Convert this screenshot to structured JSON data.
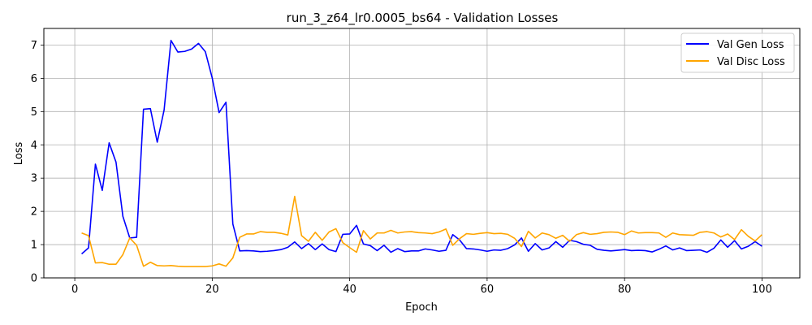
{
  "chart_data": {
    "type": "line",
    "title": "run_3_z64_lr0.0005_bs64 - Validation Losses",
    "xlabel": "Epoch",
    "ylabel": "Loss",
    "xlim": [
      -4.5,
      105.5
    ],
    "ylim": [
      0,
      7.5
    ],
    "xticks": [
      0,
      20,
      40,
      60,
      80,
      100
    ],
    "yticks": [
      0,
      1,
      2,
      3,
      4,
      5,
      6,
      7
    ],
    "grid": true,
    "legend": "upper-right",
    "x": [
      1,
      2,
      3,
      4,
      5,
      6,
      7,
      8,
      9,
      10,
      11,
      12,
      13,
      14,
      15,
      16,
      17,
      18,
      19,
      20,
      21,
      22,
      23,
      24,
      25,
      26,
      27,
      28,
      29,
      30,
      31,
      32,
      33,
      34,
      35,
      36,
      37,
      38,
      39,
      40,
      41,
      42,
      43,
      44,
      45,
      46,
      47,
      48,
      49,
      50,
      51,
      52,
      53,
      54,
      55,
      56,
      57,
      58,
      59,
      60,
      61,
      62,
      63,
      64,
      65,
      66,
      67,
      68,
      69,
      70,
      71,
      72,
      73,
      74,
      75,
      76,
      77,
      78,
      79,
      80,
      81,
      82,
      83,
      84,
      85,
      86,
      87,
      88,
      89,
      90,
      91,
      92,
      93,
      94,
      95,
      96,
      97,
      98,
      99,
      100
    ],
    "series": [
      {
        "name": "Val Gen Loss",
        "color": "#0000ff",
        "values": [
          0.72,
          0.9,
          3.42,
          2.63,
          4.06,
          3.48,
          1.85,
          1.2,
          1.22,
          5.07,
          5.09,
          4.08,
          5.05,
          7.14,
          6.79,
          6.81,
          6.88,
          7.05,
          6.8,
          6.01,
          4.97,
          5.28,
          1.62,
          0.81,
          0.82,
          0.81,
          0.79,
          0.8,
          0.82,
          0.85,
          0.92,
          1.08,
          0.88,
          1.03,
          0.85,
          1.02,
          0.85,
          0.79,
          1.31,
          1.32,
          1.58,
          1.02,
          0.97,
          0.82,
          0.98,
          0.77,
          0.88,
          0.79,
          0.81,
          0.81,
          0.87,
          0.84,
          0.8,
          0.83,
          1.3,
          1.14,
          0.88,
          0.87,
          0.84,
          0.8,
          0.84,
          0.83,
          0.88,
          0.99,
          1.2,
          0.8,
          1.03,
          0.84,
          0.9,
          1.09,
          0.92,
          1.13,
          1.09,
          1.01,
          0.98,
          0.86,
          0.83,
          0.81,
          0.83,
          0.85,
          0.82,
          0.83,
          0.82,
          0.78,
          0.86,
          0.96,
          0.84,
          0.9,
          0.82,
          0.83,
          0.84,
          0.77,
          0.89,
          1.14,
          0.92,
          1.12,
          0.87,
          0.95,
          1.09,
          0.95
        ]
      },
      {
        "name": "Val Disc Loss",
        "color": "#ffa500",
        "values": [
          1.35,
          1.27,
          0.45,
          0.46,
          0.41,
          0.41,
          0.7,
          1.2,
          0.98,
          0.35,
          0.47,
          0.37,
          0.36,
          0.37,
          0.35,
          0.34,
          0.34,
          0.34,
          0.34,
          0.36,
          0.42,
          0.35,
          0.6,
          1.22,
          1.32,
          1.32,
          1.39,
          1.37,
          1.37,
          1.34,
          1.29,
          2.45,
          1.27,
          1.1,
          1.37,
          1.13,
          1.38,
          1.48,
          1.06,
          0.91,
          0.77,
          1.42,
          1.17,
          1.35,
          1.35,
          1.43,
          1.35,
          1.38,
          1.39,
          1.36,
          1.35,
          1.33,
          1.38,
          1.47,
          0.98,
          1.18,
          1.33,
          1.31,
          1.34,
          1.36,
          1.33,
          1.34,
          1.31,
          1.19,
          0.94,
          1.4,
          1.2,
          1.35,
          1.3,
          1.19,
          1.28,
          1.1,
          1.3,
          1.36,
          1.31,
          1.33,
          1.37,
          1.38,
          1.37,
          1.3,
          1.41,
          1.35,
          1.36,
          1.36,
          1.35,
          1.22,
          1.35,
          1.3,
          1.29,
          1.28,
          1.37,
          1.39,
          1.35,
          1.23,
          1.32,
          1.15,
          1.45,
          1.25,
          1.11,
          1.3
        ]
      }
    ]
  }
}
